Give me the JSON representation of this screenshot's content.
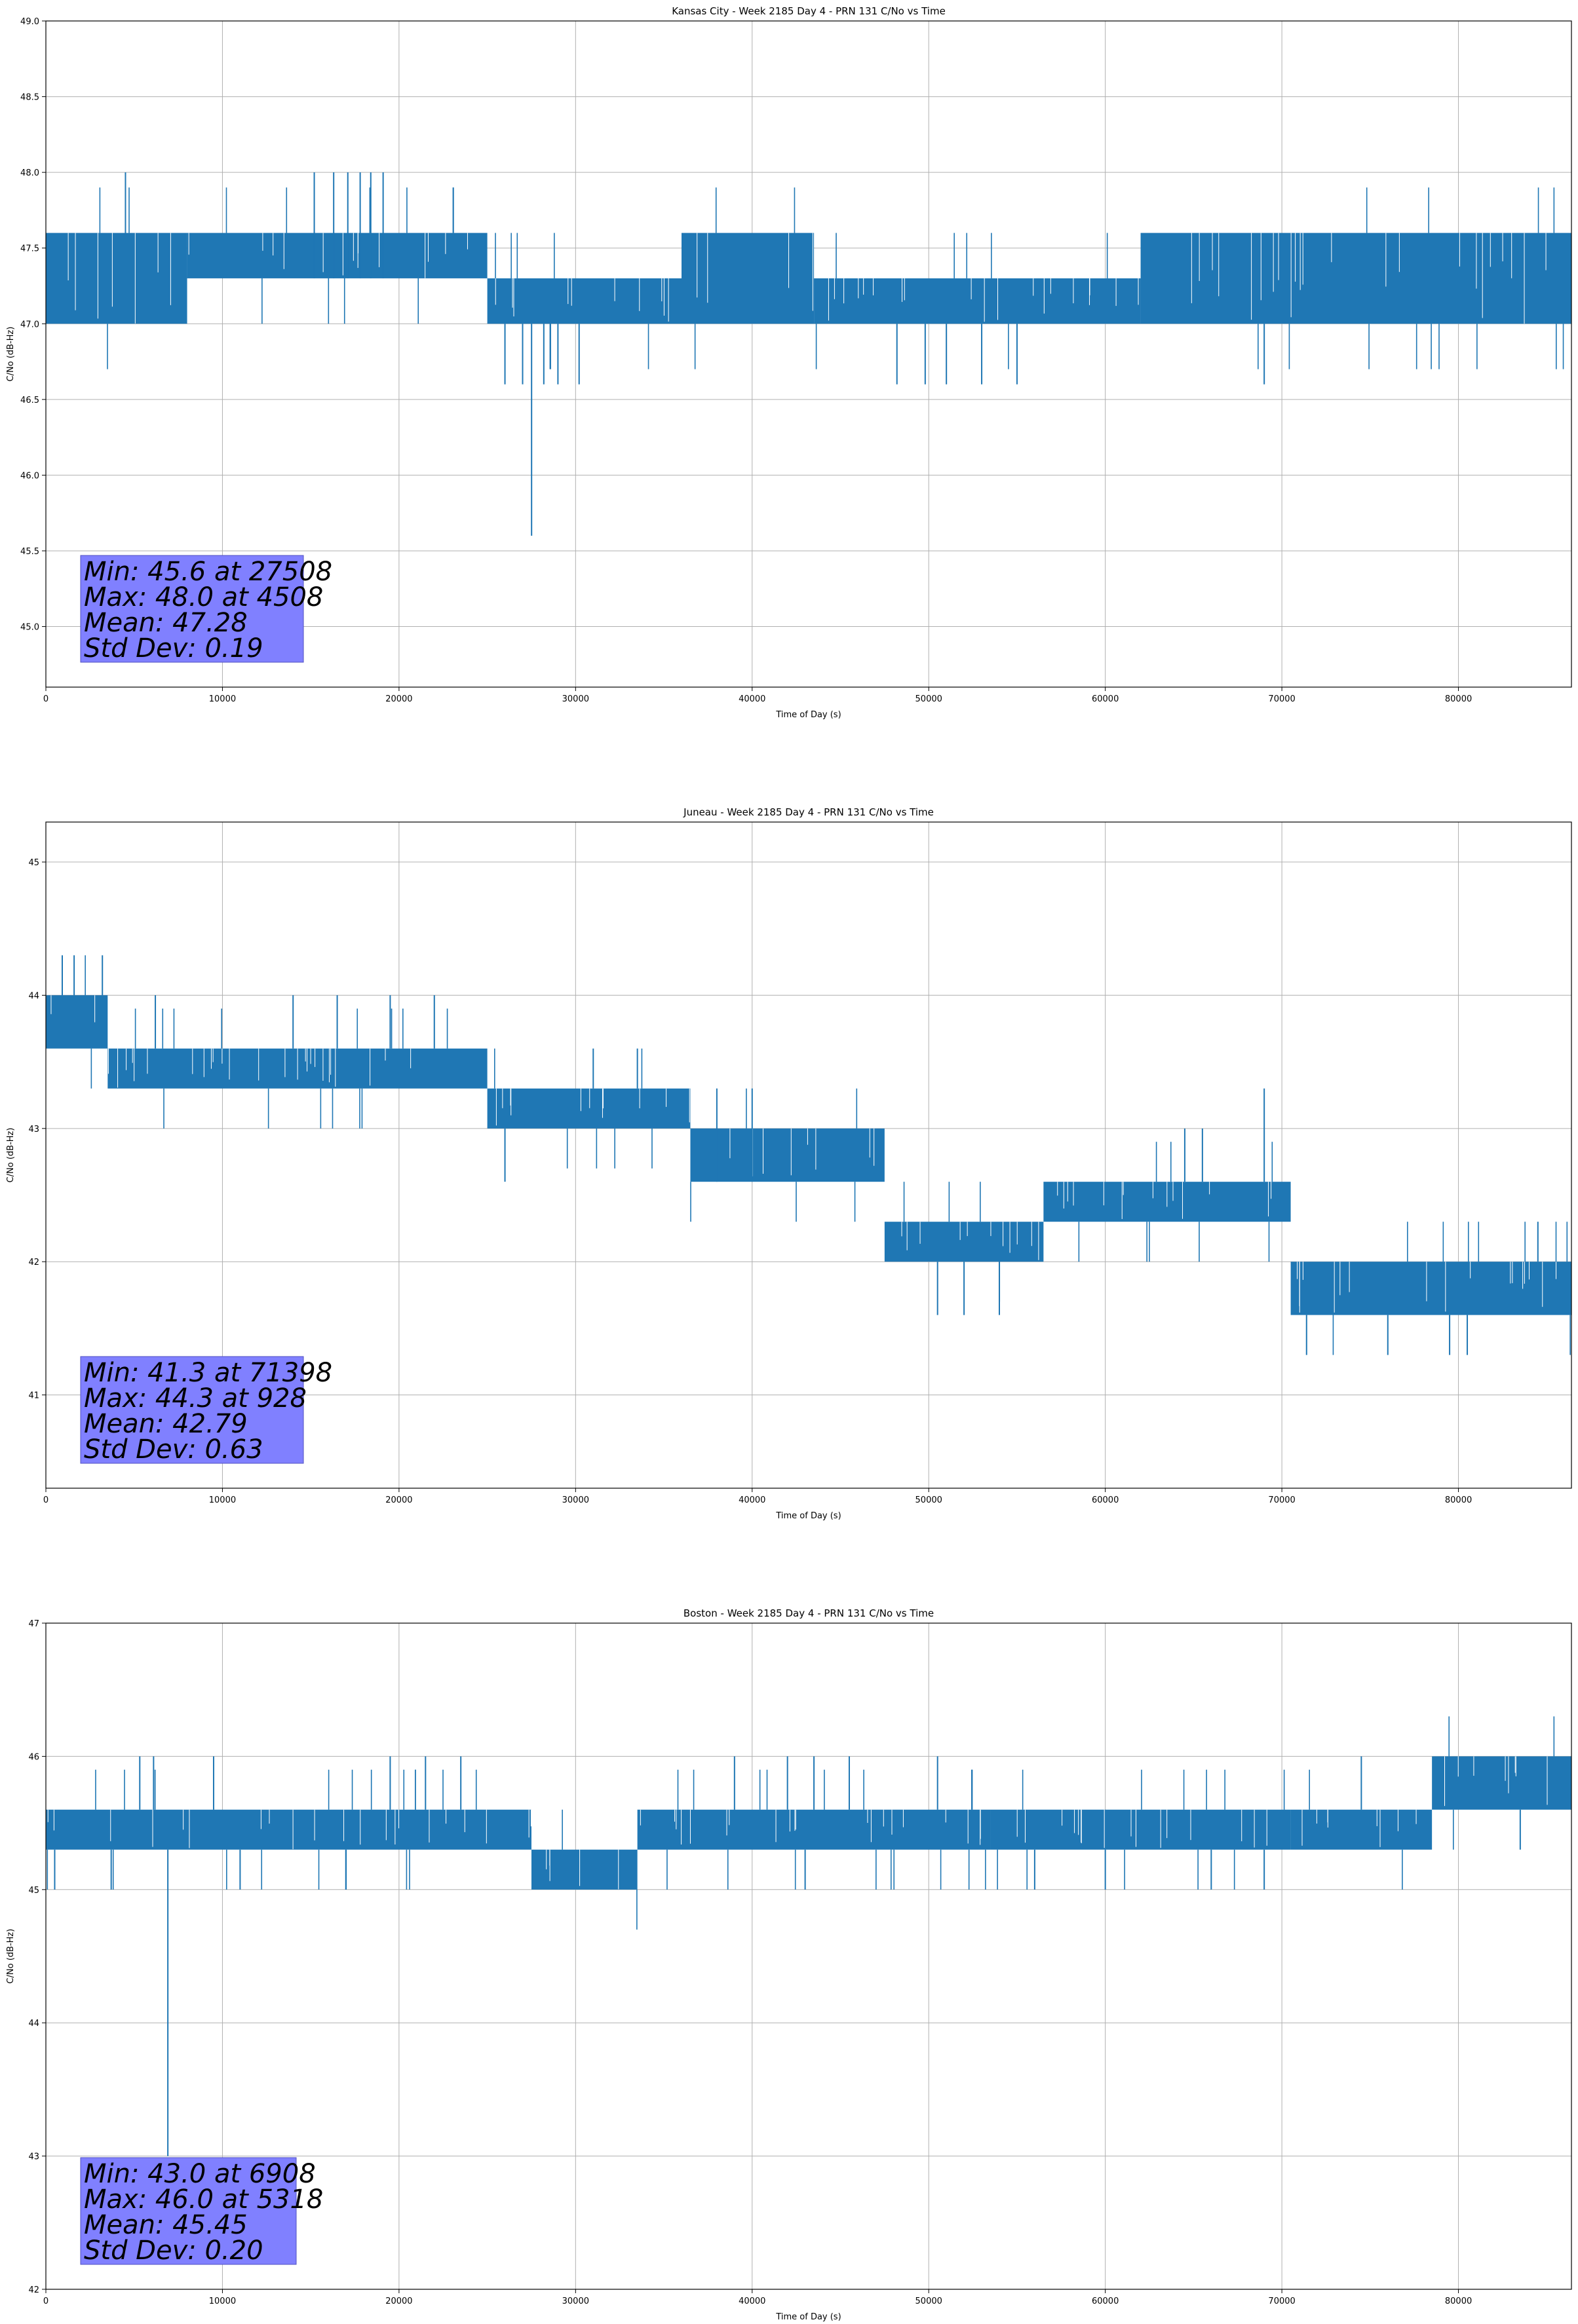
{
  "chart_data": [
    {
      "type": "line",
      "title": "Kansas City - Week 2185 Day 4 - PRN 131 C/No vs Time",
      "xlabel": "Time of Day (s)",
      "ylabel": "C/No (dB-Hz)",
      "xlim": [
        0,
        86400
      ],
      "ylim": [
        44.6,
        49.0
      ],
      "xticks": [
        0,
        10000,
        20000,
        30000,
        40000,
        50000,
        60000,
        70000,
        80000
      ],
      "yticks": [
        "45.0",
        "45.5",
        "46.0",
        "46.5",
        "47.0",
        "47.5",
        "48.0",
        "48.5",
        "49.0"
      ],
      "grid": true,
      "series_color": "#1f77b4",
      "stats": [
        "Min: 45.6 at 27508",
        "Max: 48.0 at 4508",
        "Mean: 47.28",
        "Std Dev: 0.19"
      ],
      "bands": [
        {
          "x0": 0,
          "x1": 8000,
          "lo": 47.0,
          "hi": 47.6
        },
        {
          "x0": 8000,
          "x1": 25000,
          "lo": 47.3,
          "hi": 47.6
        },
        {
          "x0": 25000,
          "x1": 36000,
          "lo": 47.0,
          "hi": 47.3
        },
        {
          "x0": 36000,
          "x1": 43500,
          "lo": 47.0,
          "hi": 47.6
        },
        {
          "x0": 43500,
          "x1": 62000,
          "lo": 47.0,
          "hi": 47.3
        },
        {
          "x0": 62000,
          "x1": 86400,
          "lo": 47.0,
          "hi": 47.6
        }
      ],
      "spikes": [
        {
          "x": 4508,
          "lo": 47.3,
          "hi": 48.0
        },
        {
          "x": 15200,
          "lo": 47.3,
          "hi": 48.0
        },
        {
          "x": 16300,
          "lo": 47.3,
          "hi": 48.0
        },
        {
          "x": 17100,
          "lo": 47.3,
          "hi": 48.0
        },
        {
          "x": 17800,
          "lo": 47.3,
          "hi": 48.0
        },
        {
          "x": 18400,
          "lo": 47.3,
          "hi": 48.0
        },
        {
          "x": 19100,
          "lo": 47.3,
          "hi": 48.0
        },
        {
          "x": 26000,
          "lo": 46.6,
          "hi": 47.0
        },
        {
          "x": 27000,
          "lo": 46.6,
          "hi": 47.0
        },
        {
          "x": 27508,
          "lo": 45.6,
          "hi": 47.0
        },
        {
          "x": 28200,
          "lo": 46.6,
          "hi": 47.0
        },
        {
          "x": 29000,
          "lo": 46.6,
          "hi": 47.0
        },
        {
          "x": 30200,
          "lo": 46.6,
          "hi": 47.0
        },
        {
          "x": 48200,
          "lo": 46.6,
          "hi": 47.0
        },
        {
          "x": 49800,
          "lo": 46.6,
          "hi": 47.0
        },
        {
          "x": 51000,
          "lo": 46.6,
          "hi": 47.0
        },
        {
          "x": 53000,
          "lo": 46.6,
          "hi": 47.0
        },
        {
          "x": 55000,
          "lo": 46.6,
          "hi": 47.0
        },
        {
          "x": 69000,
          "lo": 46.6,
          "hi": 47.0
        }
      ]
    },
    {
      "type": "line",
      "title": "Juneau - Week 2185 Day 4 - PRN 131 C/No vs Time",
      "xlabel": "Time of Day (s)",
      "ylabel": "C/No (dB-Hz)",
      "xlim": [
        0,
        86400
      ],
      "ylim": [
        40.3,
        45.3
      ],
      "xticks": [
        0,
        10000,
        20000,
        30000,
        40000,
        50000,
        60000,
        70000,
        80000
      ],
      "yticks": [
        "41",
        "42",
        "43",
        "44",
        "45"
      ],
      "grid": true,
      "series_color": "#1f77b4",
      "stats": [
        "Min: 41.3 at 71398",
        "Max: 44.3 at 928",
        "Mean: 42.79",
        "Std Dev: 0.63"
      ],
      "bands": [
        {
          "x0": 0,
          "x1": 3500,
          "lo": 43.6,
          "hi": 44.0
        },
        {
          "x0": 3500,
          "x1": 25000,
          "lo": 43.3,
          "hi": 43.6
        },
        {
          "x0": 25000,
          "x1": 36500,
          "lo": 43.0,
          "hi": 43.3
        },
        {
          "x0": 36500,
          "x1": 47500,
          "lo": 42.6,
          "hi": 43.0
        },
        {
          "x0": 47500,
          "x1": 56500,
          "lo": 42.0,
          "hi": 42.3
        },
        {
          "x0": 56500,
          "x1": 70500,
          "lo": 42.3,
          "hi": 42.6
        },
        {
          "x0": 70500,
          "x1": 86400,
          "lo": 41.6,
          "hi": 42.0
        }
      ],
      "spikes": [
        {
          "x": 928,
          "lo": 44.0,
          "hi": 44.3
        },
        {
          "x": 1600,
          "lo": 44.0,
          "hi": 44.3
        },
        {
          "x": 3200,
          "lo": 44.0,
          "hi": 44.3
        },
        {
          "x": 6200,
          "lo": 43.6,
          "hi": 44.0
        },
        {
          "x": 14000,
          "lo": 43.6,
          "hi": 44.0
        },
        {
          "x": 16500,
          "lo": 43.6,
          "hi": 44.0
        },
        {
          "x": 19500,
          "lo": 43.6,
          "hi": 44.0
        },
        {
          "x": 22000,
          "lo": 43.6,
          "hi": 44.0
        },
        {
          "x": 26000,
          "lo": 42.6,
          "hi": 43.0
        },
        {
          "x": 31000,
          "lo": 43.3,
          "hi": 43.6
        },
        {
          "x": 33500,
          "lo": 43.3,
          "hi": 43.6
        },
        {
          "x": 38000,
          "lo": 42.6,
          "hi": 43.3
        },
        {
          "x": 40000,
          "lo": 42.6,
          "hi": 43.3
        },
        {
          "x": 50500,
          "lo": 41.6,
          "hi": 42.0
        },
        {
          "x": 52000,
          "lo": 41.6,
          "hi": 42.0
        },
        {
          "x": 54000,
          "lo": 41.6,
          "hi": 42.0
        },
        {
          "x": 64500,
          "lo": 42.6,
          "hi": 43.0
        },
        {
          "x": 65500,
          "lo": 42.6,
          "hi": 43.0
        },
        {
          "x": 69000,
          "lo": 42.6,
          "hi": 43.3
        },
        {
          "x": 71398,
          "lo": 41.3,
          "hi": 41.6
        },
        {
          "x": 76000,
          "lo": 41.3,
          "hi": 41.6
        },
        {
          "x": 79500,
          "lo": 41.3,
          "hi": 41.6
        },
        {
          "x": 80500,
          "lo": 41.3,
          "hi": 41.6
        },
        {
          "x": 84500,
          "lo": 42.0,
          "hi": 42.3
        }
      ]
    },
    {
      "type": "line",
      "title": "Boston - Week 2185 Day 4 - PRN 131 C/No vs Time",
      "xlabel": "Time of Day (s)",
      "ylabel": "C/No (dB-Hz)",
      "xlim": [
        0,
        86400
      ],
      "ylim": [
        42.0,
        47.0
      ],
      "xticks": [
        0,
        10000,
        20000,
        30000,
        40000,
        50000,
        60000,
        70000,
        80000
      ],
      "yticks": [
        "42",
        "43",
        "44",
        "45",
        "46",
        "47"
      ],
      "grid": true,
      "series_color": "#1f77b4",
      "stats": [
        "Min: 43.0 at 6908",
        "Max: 46.0 at 5318",
        "Mean: 45.45",
        "Std Dev: 0.20"
      ],
      "bands": [
        {
          "x0": 0,
          "x1": 27500,
          "lo": 45.3,
          "hi": 45.6
        },
        {
          "x0": 27500,
          "x1": 33500,
          "lo": 45.0,
          "hi": 45.3
        },
        {
          "x0": 33500,
          "x1": 53500,
          "lo": 45.3,
          "hi": 45.6
        },
        {
          "x0": 53500,
          "x1": 70500,
          "lo": 45.3,
          "hi": 45.6
        },
        {
          "x0": 70500,
          "x1": 78500,
          "lo": 45.3,
          "hi": 45.6
        },
        {
          "x0": 78500,
          "x1": 86400,
          "lo": 45.6,
          "hi": 46.0
        }
      ],
      "spikes": [
        {
          "x": 500,
          "lo": 45.0,
          "hi": 45.3
        },
        {
          "x": 3700,
          "lo": 45.0,
          "hi": 45.3
        },
        {
          "x": 5318,
          "lo": 45.6,
          "hi": 46.0
        },
        {
          "x": 6100,
          "lo": 45.6,
          "hi": 46.0
        },
        {
          "x": 6908,
          "lo": 43.0,
          "hi": 45.3
        },
        {
          "x": 9500,
          "lo": 45.6,
          "hi": 46.0
        },
        {
          "x": 11000,
          "lo": 45.0,
          "hi": 45.3
        },
        {
          "x": 17000,
          "lo": 45.0,
          "hi": 45.3
        },
        {
          "x": 19500,
          "lo": 45.6,
          "hi": 46.0
        },
        {
          "x": 21500,
          "lo": 45.6,
          "hi": 46.0
        },
        {
          "x": 23500,
          "lo": 45.6,
          "hi": 46.0
        },
        {
          "x": 39000,
          "lo": 45.6,
          "hi": 46.0
        },
        {
          "x": 42000,
          "lo": 45.6,
          "hi": 46.0
        },
        {
          "x": 43500,
          "lo": 45.6,
          "hi": 46.0
        },
        {
          "x": 45500,
          "lo": 45.6,
          "hi": 46.0
        },
        {
          "x": 50500,
          "lo": 45.6,
          "hi": 46.0
        },
        {
          "x": 43000,
          "lo": 45.0,
          "hi": 45.3
        },
        {
          "x": 56000,
          "lo": 45.0,
          "hi": 45.3
        },
        {
          "x": 60000,
          "lo": 45.0,
          "hi": 45.3
        },
        {
          "x": 66000,
          "lo": 45.0,
          "hi": 45.3
        },
        {
          "x": 69000,
          "lo": 45.0,
          "hi": 45.3
        },
        {
          "x": 74500,
          "lo": 45.6,
          "hi": 46.0
        },
        {
          "x": 83500,
          "lo": 45.3,
          "hi": 45.6
        }
      ]
    }
  ]
}
